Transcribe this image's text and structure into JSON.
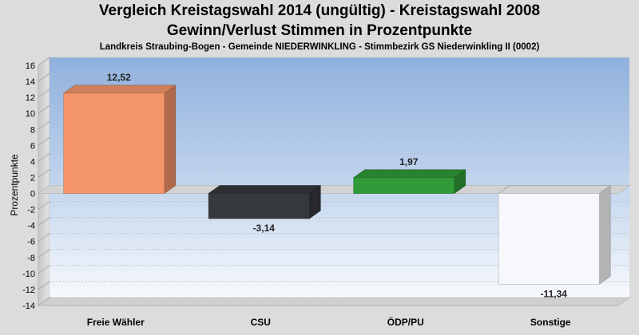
{
  "chart_data": {
    "type": "bar",
    "title": "Vergleich Kreistagswahl 2014 (ungültig) - Kreistagswahl 2008",
    "subtitle": "Gewinn/Verlust Stimmen in Prozentpunkte",
    "subsubtitle": "Landkreis Straubing-Bogen - Gemeinde NIEDERWINKLING - Stimmbezirk GS Niederwinkling II (0002)",
    "xlabel": "",
    "ylabel": "Prozentpunkte",
    "ylim": [
      -14,
      16
    ],
    "ytick_step": 2,
    "grid": true,
    "categories": [
      "Freie Wähler",
      "CSU",
      "ÖDP/PU",
      "Sonstige"
    ],
    "values": [
      12.52,
      -3.14,
      1.97,
      -11.34
    ],
    "value_labels": [
      "12,52",
      "-3,14",
      "1,97",
      "-11,34"
    ],
    "colors": [
      "#f4956a",
      "#35383c",
      "#2f9a37",
      "#f7f8fb"
    ]
  }
}
